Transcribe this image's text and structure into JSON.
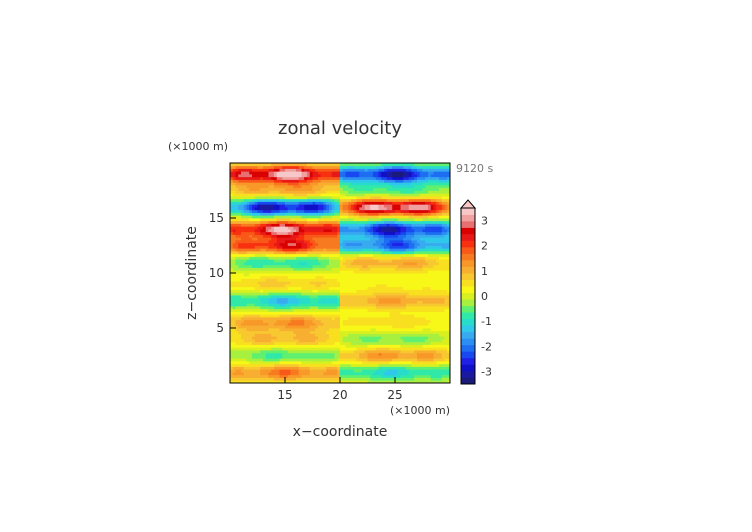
{
  "chart_data": {
    "type": "heatmap",
    "title": "zonal velocity",
    "time_label": "9120 s",
    "x_unit": "(×1000 m)",
    "y_unit": "(×1000 m)",
    "xlabel": "x−coordinate",
    "ylabel": "z−coordinate",
    "xlim": [
      10,
      30
    ],
    "ylim": [
      0,
      20
    ],
    "x_ticks": [
      15,
      20,
      25
    ],
    "y_ticks": [
      5,
      10,
      15
    ],
    "colorbar": {
      "levels": [
        -3.5,
        -3.25,
        -3,
        -2.75,
        -2.5,
        -2.25,
        -2,
        -1.75,
        -1.5,
        -1.25,
        -1,
        -0.75,
        -0.5,
        -0.25,
        0,
        0.25,
        0.5,
        0.75,
        1,
        1.25,
        1.5,
        1.75,
        2,
        2.25,
        2.5,
        2.75,
        3,
        3.25
      ],
      "tick_labels": [
        "-3",
        "-2",
        "-1",
        "0",
        "1",
        "2",
        "3"
      ],
      "tick_values": [
        -3,
        -2,
        -1,
        0,
        1,
        2,
        3
      ],
      "colors": [
        "#1a1a7a",
        "#1a1aa0",
        "#1010c8",
        "#2020e6",
        "#1848f0",
        "#1e6ef2",
        "#2c8ef2",
        "#38aaf0",
        "#30c8ea",
        "#28dccc",
        "#30e8a8",
        "#60f070",
        "#a8f040",
        "#d8f020",
        "#f8f818",
        "#f8e020",
        "#f8c830",
        "#f8ae30",
        "#f89828",
        "#f87a20",
        "#f85818",
        "#f83010",
        "#e81818",
        "#d80000",
        "#e87070",
        "#f0a0a0",
        "#f8c8c8"
      ]
    },
    "bands": [
      {
        "z": 1.0,
        "left": 1.4,
        "right": -1.2
      },
      {
        "z": 2.5,
        "left": -0.8,
        "right": 1.2
      },
      {
        "z": 4.0,
        "left": 0.8,
        "right": -0.6
      },
      {
        "z": 5.5,
        "left": 1.2,
        "right": 0.4
      },
      {
        "z": 7.5,
        "left": -1.4,
        "right": 1.0
      },
      {
        "z": 9.0,
        "left": 0.6,
        "right": 0.2
      },
      {
        "z": 11.0,
        "left": -1.0,
        "right": 1.0
      },
      {
        "z": 12.5,
        "left": 2.2,
        "right": -2.2
      },
      {
        "z": 14.0,
        "left": 2.8,
        "right": -2.8
      },
      {
        "z": 16.0,
        "left": -3.0,
        "right": 3.0
      },
      {
        "z": 17.5,
        "left": 1.0,
        "right": -0.8
      },
      {
        "z": 19.0,
        "left": 3.1,
        "right": -3.0
      }
    ]
  }
}
